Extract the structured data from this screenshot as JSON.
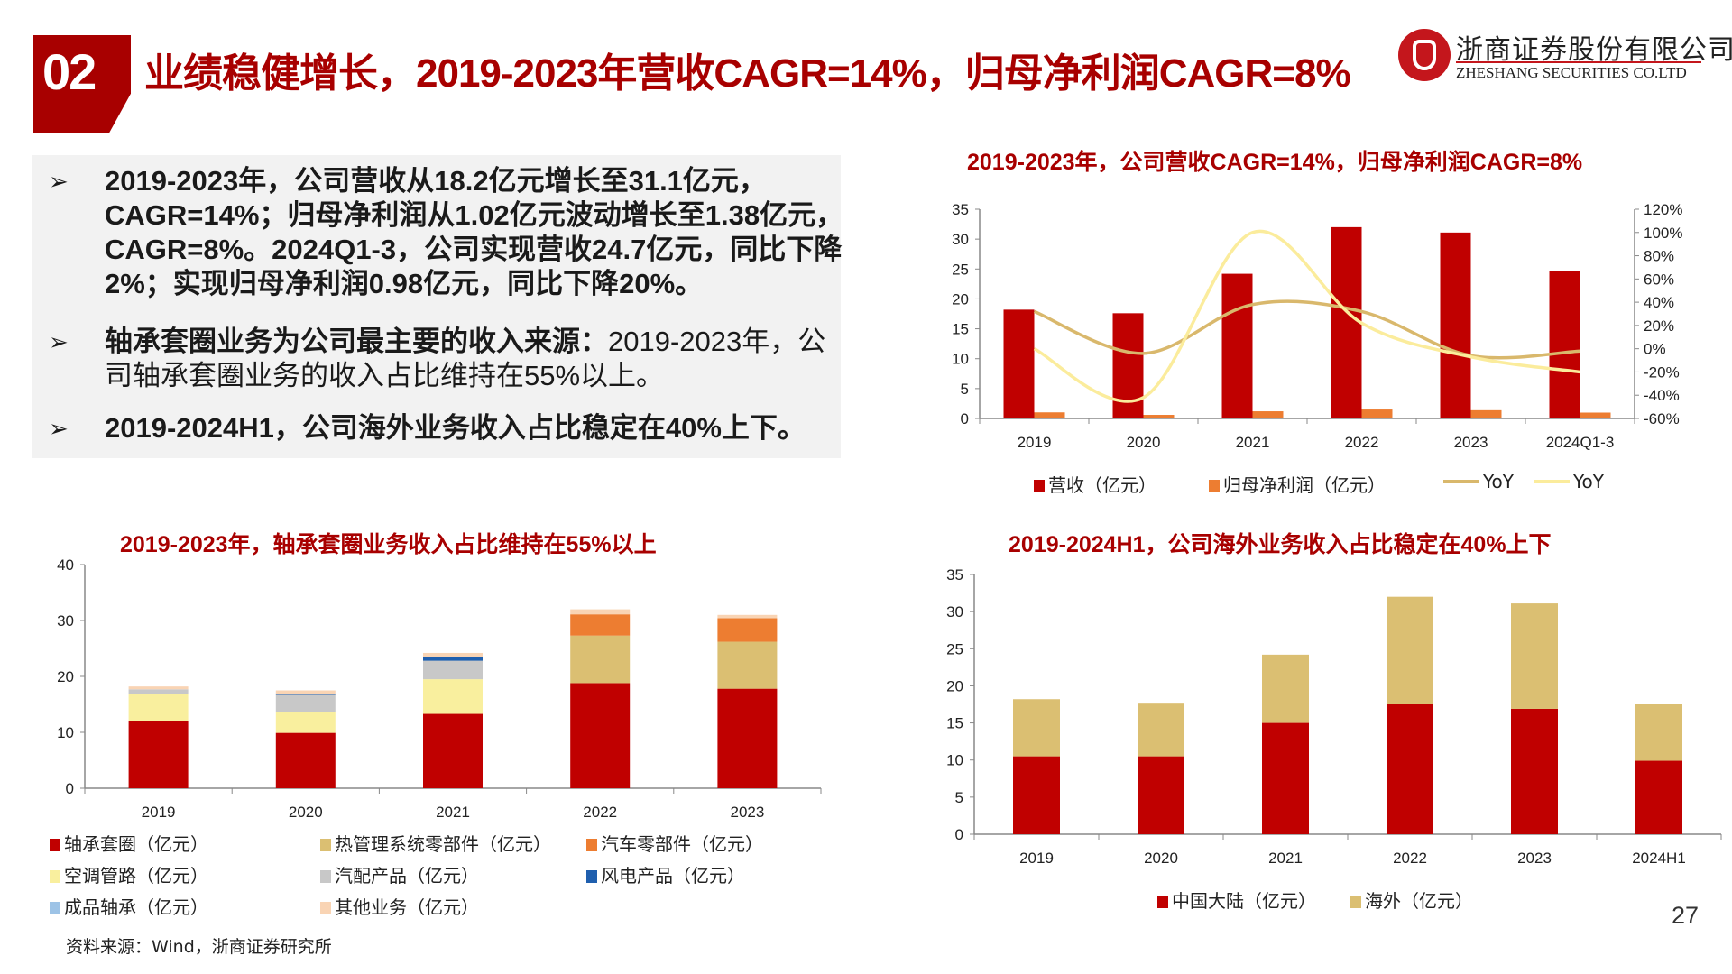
{
  "header": {
    "section_number": "02",
    "title": "业绩稳健增长，2019-2023年营收CAGR=14%，归母净利润CAGR=8%",
    "logo_cn": "浙商证券股份有限公司",
    "logo_en": "ZHESHANG SECURITIES CO.LTD"
  },
  "bullets": [
    {
      "bold": "2019-2023年，公司营收从18.2亿元增长至31.1亿元，CAGR=14%；归母净利润从1.02亿元波动增长至1.38亿元，CAGR=8%。2024Q1-3，公司实现营收24.7亿元，同比下降2%；实现归母净利润0.98亿元，同比下降20%。",
      "normal": ""
    },
    {
      "bold": "轴承套圈业务为公司最主要的收入来源：",
      "normal": "2019-2023年，公司轴承套圈业务的收入占比维持在55%以上。"
    },
    {
      "bold": "2019-2024H1，公司海外业务收入占比稳定在40%上下。",
      "normal": ""
    }
  ],
  "bullet_arrow": "➢",
  "source": "资料来源：Wind，浙商证券研究所",
  "page_number": "27",
  "chart_data": [
    {
      "type": "bar",
      "title": "2019-2023年，公司营收CAGR=14%，归母净利润CAGR=8%",
      "categories": [
        "2019",
        "2020",
        "2021",
        "2022",
        "2023",
        "2024Q1-3"
      ],
      "ylim": [
        0,
        35
      ],
      "yticks": [
        "0",
        "5",
        "10",
        "15",
        "20",
        "25",
        "30",
        "35"
      ],
      "y2lim": [
        -60,
        120
      ],
      "y2ticks": [
        "-60%",
        "-40%",
        "-20%",
        "0%",
        "20%",
        "40%",
        "60%",
        "80%",
        "100%",
        "120%"
      ],
      "series": [
        {
          "name": "营收（亿元）",
          "kind": "bar",
          "axis": "left",
          "color": "#c00000",
          "values": [
            18.2,
            17.6,
            24.2,
            32.0,
            31.1,
            24.7
          ]
        },
        {
          "name": "归母净利润（亿元）",
          "kind": "bar",
          "axis": "left",
          "color": "#ed7d31",
          "values": [
            1.02,
            0.6,
            1.2,
            1.5,
            1.38,
            0.98
          ]
        },
        {
          "name": "YoY",
          "kind": "line",
          "axis": "right",
          "color": "#d9b86c",
          "values": [
            32,
            -4,
            38,
            32,
            -6,
            -2
          ]
        },
        {
          "name": "YoY",
          "kind": "line",
          "axis": "right",
          "color": "#fbec9c",
          "values": [
            0,
            -42,
            100,
            22,
            -7,
            -20
          ]
        }
      ],
      "legend_position": "bottom"
    },
    {
      "type": "bar",
      "stacked": true,
      "title": "2019-2023年，轴承套圈业务收入占比维持在55%以上",
      "categories": [
        "2019",
        "2020",
        "2021",
        "2022",
        "2023"
      ],
      "ylim": [
        0,
        40
      ],
      "yticks": [
        "0",
        "10",
        "20",
        "30",
        "40"
      ],
      "series": [
        {
          "name": "轴承套圈（亿元）",
          "color": "#c00000",
          "values": [
            12.0,
            9.9,
            13.3,
            18.8,
            17.8
          ]
        },
        {
          "name": "热管理系统零部件（亿元）",
          "color": "#dbbf72",
          "values": [
            0,
            0,
            0,
            8.5,
            8.4
          ]
        },
        {
          "name": "汽车零部件（亿元）",
          "color": "#ed7d31",
          "values": [
            0,
            0,
            0,
            3.8,
            4.2
          ]
        },
        {
          "name": "空调管路（亿元）",
          "color": "#f9ef9e",
          "values": [
            4.8,
            3.8,
            6.2,
            0,
            0
          ]
        },
        {
          "name": "汽配产品（亿元）",
          "color": "#c8c8c8",
          "values": [
            0.9,
            3.0,
            3.3,
            0,
            0
          ]
        },
        {
          "name": "风电产品（亿元）",
          "color": "#1f5fae",
          "values": [
            0,
            0.2,
            0.6,
            0,
            0
          ]
        },
        {
          "name": "成品轴承（亿元）",
          "color": "#9dc3e6",
          "values": [
            0,
            0,
            0,
            0,
            0
          ]
        },
        {
          "name": "其他业务（亿元）",
          "color": "#f9d4b4",
          "values": [
            0.5,
            0.6,
            0.8,
            0.9,
            0.6
          ]
        }
      ],
      "legend_position": "bottom"
    },
    {
      "type": "bar",
      "stacked": true,
      "title": "2019-2024H1，公司海外业务收入占比稳定在40%上下",
      "categories": [
        "2019",
        "2020",
        "2021",
        "2022",
        "2023",
        "2024H1"
      ],
      "ylim": [
        0,
        35
      ],
      "yticks": [
        "0",
        "5",
        "10",
        "15",
        "20",
        "25",
        "30",
        "35"
      ],
      "series": [
        {
          "name": "中国大陆（亿元）",
          "color": "#c00000",
          "values": [
            10.5,
            10.5,
            15.0,
            17.5,
            16.9,
            9.9
          ]
        },
        {
          "name": "海外（亿元）",
          "color": "#dbbf72",
          "values": [
            7.7,
            7.1,
            9.2,
            14.5,
            14.2,
            7.6
          ]
        }
      ],
      "legend_position": "bottom"
    }
  ]
}
